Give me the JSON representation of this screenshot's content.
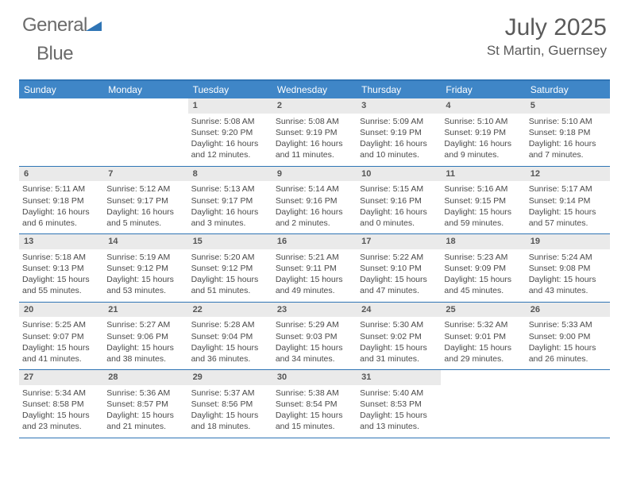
{
  "logo": {
    "word1": "General",
    "word2": "Blue"
  },
  "title": "July 2025",
  "location": "St Martin, Guernsey",
  "colors": {
    "header_bg": "#3f86c7",
    "border": "#2f75b5",
    "daynum_bg": "#eaeaea",
    "text": "#4a4a4a",
    "logo_gray": "#6b6b6b",
    "logo_blue": "#3f86c7"
  },
  "day_names": [
    "Sunday",
    "Monday",
    "Tuesday",
    "Wednesday",
    "Thursday",
    "Friday",
    "Saturday"
  ],
  "weeks": [
    [
      null,
      null,
      {
        "n": "1",
        "sr": "Sunrise: 5:08 AM",
        "ss": "Sunset: 9:20 PM",
        "dl": "Daylight: 16 hours and 12 minutes."
      },
      {
        "n": "2",
        "sr": "Sunrise: 5:08 AM",
        "ss": "Sunset: 9:19 PM",
        "dl": "Daylight: 16 hours and 11 minutes."
      },
      {
        "n": "3",
        "sr": "Sunrise: 5:09 AM",
        "ss": "Sunset: 9:19 PM",
        "dl": "Daylight: 16 hours and 10 minutes."
      },
      {
        "n": "4",
        "sr": "Sunrise: 5:10 AM",
        "ss": "Sunset: 9:19 PM",
        "dl": "Daylight: 16 hours and 9 minutes."
      },
      {
        "n": "5",
        "sr": "Sunrise: 5:10 AM",
        "ss": "Sunset: 9:18 PM",
        "dl": "Daylight: 16 hours and 7 minutes."
      }
    ],
    [
      {
        "n": "6",
        "sr": "Sunrise: 5:11 AM",
        "ss": "Sunset: 9:18 PM",
        "dl": "Daylight: 16 hours and 6 minutes."
      },
      {
        "n": "7",
        "sr": "Sunrise: 5:12 AM",
        "ss": "Sunset: 9:17 PM",
        "dl": "Daylight: 16 hours and 5 minutes."
      },
      {
        "n": "8",
        "sr": "Sunrise: 5:13 AM",
        "ss": "Sunset: 9:17 PM",
        "dl": "Daylight: 16 hours and 3 minutes."
      },
      {
        "n": "9",
        "sr": "Sunrise: 5:14 AM",
        "ss": "Sunset: 9:16 PM",
        "dl": "Daylight: 16 hours and 2 minutes."
      },
      {
        "n": "10",
        "sr": "Sunrise: 5:15 AM",
        "ss": "Sunset: 9:16 PM",
        "dl": "Daylight: 16 hours and 0 minutes."
      },
      {
        "n": "11",
        "sr": "Sunrise: 5:16 AM",
        "ss": "Sunset: 9:15 PM",
        "dl": "Daylight: 15 hours and 59 minutes."
      },
      {
        "n": "12",
        "sr": "Sunrise: 5:17 AM",
        "ss": "Sunset: 9:14 PM",
        "dl": "Daylight: 15 hours and 57 minutes."
      }
    ],
    [
      {
        "n": "13",
        "sr": "Sunrise: 5:18 AM",
        "ss": "Sunset: 9:13 PM",
        "dl": "Daylight: 15 hours and 55 minutes."
      },
      {
        "n": "14",
        "sr": "Sunrise: 5:19 AM",
        "ss": "Sunset: 9:12 PM",
        "dl": "Daylight: 15 hours and 53 minutes."
      },
      {
        "n": "15",
        "sr": "Sunrise: 5:20 AM",
        "ss": "Sunset: 9:12 PM",
        "dl": "Daylight: 15 hours and 51 minutes."
      },
      {
        "n": "16",
        "sr": "Sunrise: 5:21 AM",
        "ss": "Sunset: 9:11 PM",
        "dl": "Daylight: 15 hours and 49 minutes."
      },
      {
        "n": "17",
        "sr": "Sunrise: 5:22 AM",
        "ss": "Sunset: 9:10 PM",
        "dl": "Daylight: 15 hours and 47 minutes."
      },
      {
        "n": "18",
        "sr": "Sunrise: 5:23 AM",
        "ss": "Sunset: 9:09 PM",
        "dl": "Daylight: 15 hours and 45 minutes."
      },
      {
        "n": "19",
        "sr": "Sunrise: 5:24 AM",
        "ss": "Sunset: 9:08 PM",
        "dl": "Daylight: 15 hours and 43 minutes."
      }
    ],
    [
      {
        "n": "20",
        "sr": "Sunrise: 5:25 AM",
        "ss": "Sunset: 9:07 PM",
        "dl": "Daylight: 15 hours and 41 minutes."
      },
      {
        "n": "21",
        "sr": "Sunrise: 5:27 AM",
        "ss": "Sunset: 9:06 PM",
        "dl": "Daylight: 15 hours and 38 minutes."
      },
      {
        "n": "22",
        "sr": "Sunrise: 5:28 AM",
        "ss": "Sunset: 9:04 PM",
        "dl": "Daylight: 15 hours and 36 minutes."
      },
      {
        "n": "23",
        "sr": "Sunrise: 5:29 AM",
        "ss": "Sunset: 9:03 PM",
        "dl": "Daylight: 15 hours and 34 minutes."
      },
      {
        "n": "24",
        "sr": "Sunrise: 5:30 AM",
        "ss": "Sunset: 9:02 PM",
        "dl": "Daylight: 15 hours and 31 minutes."
      },
      {
        "n": "25",
        "sr": "Sunrise: 5:32 AM",
        "ss": "Sunset: 9:01 PM",
        "dl": "Daylight: 15 hours and 29 minutes."
      },
      {
        "n": "26",
        "sr": "Sunrise: 5:33 AM",
        "ss": "Sunset: 9:00 PM",
        "dl": "Daylight: 15 hours and 26 minutes."
      }
    ],
    [
      {
        "n": "27",
        "sr": "Sunrise: 5:34 AM",
        "ss": "Sunset: 8:58 PM",
        "dl": "Daylight: 15 hours and 23 minutes."
      },
      {
        "n": "28",
        "sr": "Sunrise: 5:36 AM",
        "ss": "Sunset: 8:57 PM",
        "dl": "Daylight: 15 hours and 21 minutes."
      },
      {
        "n": "29",
        "sr": "Sunrise: 5:37 AM",
        "ss": "Sunset: 8:56 PM",
        "dl": "Daylight: 15 hours and 18 minutes."
      },
      {
        "n": "30",
        "sr": "Sunrise: 5:38 AM",
        "ss": "Sunset: 8:54 PM",
        "dl": "Daylight: 15 hours and 15 minutes."
      },
      {
        "n": "31",
        "sr": "Sunrise: 5:40 AM",
        "ss": "Sunset: 8:53 PM",
        "dl": "Daylight: 15 hours and 13 minutes."
      },
      null,
      null
    ]
  ]
}
